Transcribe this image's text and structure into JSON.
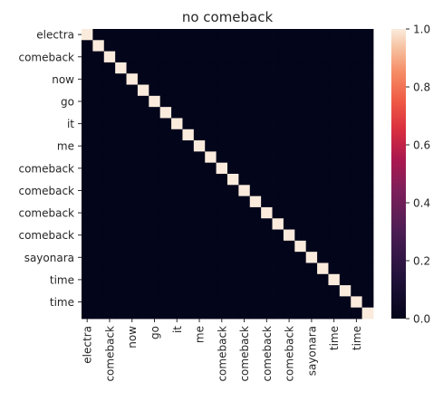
{
  "chart_data": {
    "type": "heatmap",
    "title": "no comeback",
    "xlabel": "",
    "ylabel": "",
    "row_labels": [
      "electra",
      "",
      "comeback",
      "",
      "now",
      "",
      "go",
      "",
      "it",
      "",
      "me",
      "",
      "comeback",
      "",
      "comeback",
      "",
      "comeback",
      "",
      "comeback",
      "",
      "sayonara",
      "",
      "time",
      "",
      "time",
      ""
    ],
    "col_labels": [
      "electra",
      "",
      "comeback",
      "",
      "now",
      "",
      "go",
      "",
      "it",
      "",
      "me",
      "",
      "comeback",
      "",
      "comeback",
      "",
      "comeback",
      "",
      "comeback",
      "",
      "sayonara",
      "",
      "time",
      "",
      "time",
      ""
    ],
    "values": [
      [
        1,
        0,
        0,
        0,
        0,
        0,
        0,
        0,
        0,
        0,
        0,
        0,
        0,
        0,
        0,
        0,
        0,
        0,
        0,
        0,
        0,
        0,
        0,
        0,
        0,
        0
      ],
      [
        0,
        1,
        0,
        0,
        0,
        0,
        0,
        0,
        0,
        0,
        0,
        0,
        0,
        0,
        0,
        0,
        0,
        0,
        0,
        0,
        0,
        0,
        0,
        0,
        0,
        0
      ],
      [
        0,
        0,
        1,
        0,
        0,
        0,
        0,
        0,
        0,
        0,
        0,
        0,
        0,
        0,
        0,
        0,
        0,
        0,
        0,
        0,
        0,
        0,
        0,
        0,
        0,
        0
      ],
      [
        0,
        0,
        0,
        1,
        0,
        0,
        0,
        0,
        0,
        0,
        0,
        0,
        0,
        0,
        0,
        0,
        0,
        0,
        0,
        0,
        0,
        0,
        0,
        0,
        0,
        0
      ],
      [
        0,
        0,
        0,
        0,
        1,
        0,
        0,
        0,
        0,
        0,
        0,
        0,
        0,
        0,
        0,
        0,
        0,
        0,
        0,
        0,
        0,
        0,
        0,
        0,
        0,
        0
      ],
      [
        0,
        0,
        0,
        0,
        0,
        1,
        0,
        0,
        0,
        0,
        0,
        0,
        0,
        0,
        0,
        0,
        0,
        0,
        0,
        0,
        0,
        0,
        0,
        0,
        0,
        0
      ],
      [
        0,
        0,
        0,
        0,
        0,
        0,
        1,
        0,
        0,
        0,
        0,
        0,
        0,
        0,
        0,
        0,
        0,
        0,
        0,
        0,
        0,
        0,
        0,
        0,
        0,
        0
      ],
      [
        0,
        0,
        0,
        0,
        0,
        0,
        0,
        1,
        0,
        0,
        0,
        0,
        0,
        0,
        0,
        0,
        0,
        0,
        0,
        0,
        0,
        0,
        0,
        0,
        0,
        0
      ],
      [
        0,
        0,
        0,
        0,
        0,
        0,
        0,
        0,
        1,
        0,
        0,
        0,
        0,
        0,
        0,
        0,
        0,
        0,
        0,
        0,
        0,
        0,
        0,
        0,
        0,
        0
      ],
      [
        0,
        0,
        0,
        0,
        0,
        0,
        0,
        0,
        0,
        1,
        0,
        0,
        0,
        0,
        0,
        0,
        0,
        0,
        0,
        0,
        0,
        0,
        0,
        0,
        0,
        0
      ],
      [
        0,
        0,
        0,
        0,
        0,
        0,
        0,
        0,
        0,
        0,
        1,
        0,
        0,
        0,
        0,
        0,
        0,
        0,
        0,
        0,
        0,
        0,
        0,
        0,
        0,
        0
      ],
      [
        0,
        0,
        0,
        0,
        0,
        0,
        0,
        0,
        0,
        0,
        0,
        1,
        0,
        0,
        0,
        0,
        0,
        0,
        0,
        0,
        0,
        0,
        0,
        0,
        0,
        0
      ],
      [
        0,
        0,
        0,
        0,
        0,
        0,
        0,
        0,
        0,
        0,
        0,
        0,
        1,
        0,
        0,
        0,
        0,
        0,
        0,
        0,
        0,
        0,
        0,
        0,
        0,
        0
      ],
      [
        0,
        0,
        0,
        0,
        0,
        0,
        0,
        0,
        0,
        0,
        0,
        0,
        0,
        1,
        0,
        0,
        0,
        0,
        0,
        0,
        0,
        0,
        0,
        0,
        0,
        0
      ],
      [
        0,
        0,
        0,
        0,
        0,
        0,
        0,
        0,
        0,
        0,
        0,
        0,
        0,
        0,
        1,
        0,
        0,
        0,
        0,
        0,
        0,
        0,
        0,
        0,
        0,
        0
      ],
      [
        0,
        0,
        0,
        0,
        0,
        0,
        0,
        0,
        0,
        0,
        0,
        0,
        0,
        0,
        0,
        1,
        0,
        0,
        0,
        0,
        0,
        0,
        0,
        0,
        0,
        0
      ],
      [
        0,
        0,
        0,
        0,
        0,
        0,
        0,
        0,
        0,
        0,
        0,
        0,
        0,
        0,
        0,
        0,
        1,
        0,
        0,
        0,
        0,
        0,
        0,
        0,
        0,
        0
      ],
      [
        0,
        0,
        0,
        0,
        0,
        0,
        0,
        0,
        0,
        0,
        0,
        0,
        0,
        0,
        0,
        0,
        0,
        1,
        0,
        0,
        0,
        0,
        0,
        0,
        0,
        0
      ],
      [
        0,
        0,
        0,
        0,
        0,
        0,
        0,
        0,
        0,
        0,
        0,
        0,
        0,
        0,
        0,
        0,
        0,
        0,
        1,
        0,
        0,
        0,
        0,
        0,
        0,
        0
      ],
      [
        0,
        0,
        0,
        0,
        0,
        0,
        0,
        0,
        0,
        0,
        0,
        0,
        0,
        0,
        0,
        0,
        0,
        0,
        0,
        1,
        0,
        0,
        0,
        0,
        0,
        0
      ],
      [
        0,
        0,
        0,
        0,
        0,
        0,
        0,
        0,
        0,
        0,
        0,
        0,
        0,
        0,
        0,
        0,
        0,
        0,
        0,
        0,
        1,
        0,
        0,
        0,
        0,
        0
      ],
      [
        0,
        0,
        0,
        0,
        0,
        0,
        0,
        0,
        0,
        0,
        0,
        0,
        0,
        0,
        0,
        0,
        0,
        0,
        0,
        0,
        0,
        1,
        0,
        0,
        0,
        0
      ],
      [
        0,
        0,
        0,
        0,
        0,
        0,
        0,
        0,
        0,
        0,
        0,
        0,
        0,
        0,
        0,
        0,
        0,
        0,
        0,
        0,
        0,
        0,
        1,
        0,
        0,
        0
      ],
      [
        0,
        0,
        0,
        0,
        0,
        0,
        0,
        0,
        0,
        0,
        0,
        0,
        0,
        0,
        0,
        0,
        0,
        0,
        0,
        0,
        0,
        0,
        0,
        1,
        0,
        0
      ],
      [
        0,
        0,
        0,
        0,
        0,
        0,
        0,
        0,
        0,
        0,
        0,
        0,
        0,
        0,
        0,
        0,
        0,
        0,
        0,
        0,
        0,
        0,
        0,
        0,
        1,
        0
      ],
      [
        0,
        0,
        0,
        0,
        0,
        0,
        0,
        0,
        0,
        0,
        0,
        0,
        0,
        0,
        0,
        0,
        0,
        0,
        0,
        0,
        0,
        0,
        0,
        0,
        0,
        1
      ]
    ],
    "colorbar": {
      "min": 0.0,
      "max": 1.0,
      "ticks": [
        "0.0",
        "0.2",
        "0.4",
        "0.6",
        "0.8",
        "1.0"
      ]
    },
    "colormap": "rocket",
    "grid": false
  }
}
